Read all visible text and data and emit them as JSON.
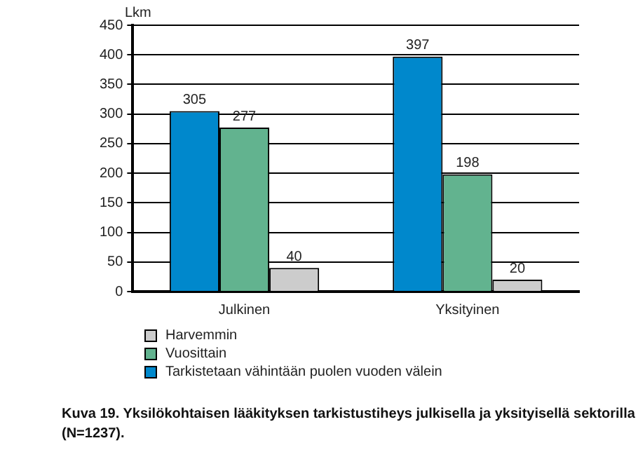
{
  "chart_data": {
    "type": "bar",
    "title": "Kuva 19. Yksilökohtaisen lääkityksen tarkistustiheys julkisella ja yksityisellä sektorilla (N=1237).",
    "ylabel": "Lkm",
    "categories": [
      "Julkinen",
      "Yksityinen"
    ],
    "series": [
      {
        "name": "Tarkistetaan vähintään puolen vuoden välein",
        "color": "#0088cc",
        "values": [
          305,
          397
        ]
      },
      {
        "name": "Vuosittain",
        "color": "#62b38f",
        "values": [
          277,
          198
        ]
      },
      {
        "name": "Harvemmin",
        "color": "#cccccc",
        "values": [
          40,
          20
        ]
      }
    ],
    "ylim": [
      0,
      450
    ],
    "yticks": [
      0,
      50,
      100,
      150,
      200,
      250,
      300,
      350,
      400,
      450
    ],
    "grid": "y",
    "legend": "bottom left",
    "data_labels": true
  }
}
